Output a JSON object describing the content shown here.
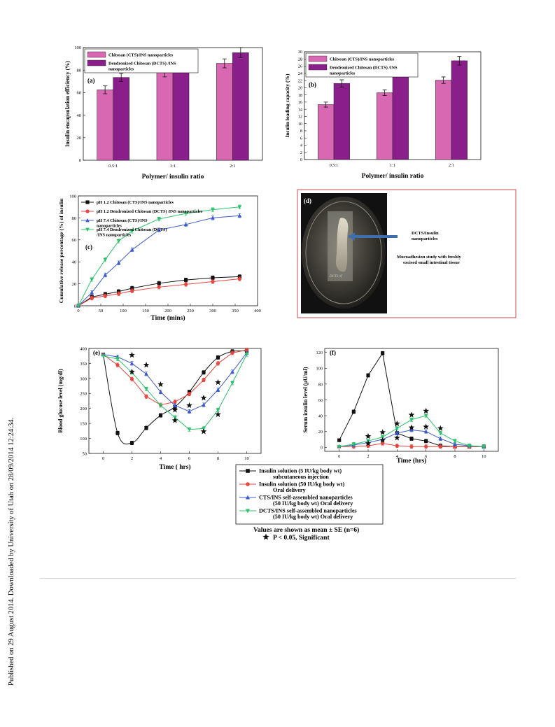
{
  "side_note": "Published on 29 August 2014. Downloaded by University of Utah on 28/09/2014 12:24:34.",
  "colors": {
    "pink": "#d968b3",
    "purple": "#8a1f8c",
    "black": "#111111",
    "red": "#e8453c",
    "blue": "#3d5ccc",
    "green": "#2bc46b",
    "frame": "#d36b6b"
  },
  "chart_data": [
    {
      "id": "a",
      "type": "bar",
      "panel_label": "(a)",
      "categories": [
        "0.5:1",
        "1:1",
        "2:1"
      ],
      "series": [
        {
          "name": "Chitosan (CTS)/INS nanoparticles",
          "values": [
            62.5,
            78,
            86
          ],
          "errors": [
            3.5,
            4,
            4
          ]
        },
        {
          "name": "Dendronized Chitosan (DCTS) /INS nanoparticles",
          "values": [
            73.5,
            89.5,
            95.5
          ],
          "errors": [
            3.5,
            5,
            4.5
          ]
        }
      ],
      "xlabel": "Polymer/ insulin ratio",
      "ylabel": "Insulin encapsulation efficiency (%)",
      "ylim": [
        0,
        100
      ],
      "yticks": [
        "0",
        "20",
        "40",
        "60",
        "80",
        "100"
      ],
      "legend": "top-left"
    },
    {
      "id": "b",
      "type": "bar",
      "panel_label": "(b)",
      "categories": [
        "0.5:1",
        "1:1",
        "2:1"
      ],
      "series": [
        {
          "name": "Chitosan (CTS)/INS nanoparticles",
          "values": [
            15.3,
            18.6,
            22.1
          ],
          "errors": [
            0.7,
            0.8,
            0.9
          ]
        },
        {
          "name": "Dendronized Chitosan (DCTS) /INS nanoparticles",
          "values": [
            21.2,
            25.4,
            27.5
          ],
          "errors": [
            1,
            1.2,
            1.2
          ]
        }
      ],
      "xlabel": "Polymer/ insulin ratio",
      "ylabel": "Insulin loading capacity (%)",
      "ylim": [
        0,
        30
      ],
      "yticks": [
        "0",
        "2",
        "4",
        "6",
        "8",
        "10",
        "12",
        "14",
        "16",
        "18",
        "20",
        "22",
        "24",
        "26",
        "28",
        "30"
      ],
      "legend": "top-left"
    },
    {
      "id": "c",
      "type": "line",
      "panel_label": "(c)",
      "series": [
        {
          "name": "pH 1.2 Chitosan (CTS)/INS nanoparticles",
          "marker": "square",
          "x": [
            0,
            30,
            60,
            90,
            120,
            180,
            240,
            300,
            360
          ],
          "y": [
            0,
            8,
            10.5,
            13,
            16,
            20.5,
            23.5,
            25.5,
            26.5
          ]
        },
        {
          "name": "pH 1.2 Dendronized Chitosan (DCTS) /INS nanoparticles",
          "marker": "circle",
          "x": [
            0,
            30,
            60,
            90,
            120,
            180,
            240,
            300,
            360
          ],
          "y": [
            0,
            7,
            9,
            11,
            13.5,
            17,
            19.5,
            22,
            24.5
          ]
        },
        {
          "name": "pH 7.4 Chitosan (CTS)/INS nanoparticles",
          "marker": "triangle-up",
          "x": [
            0,
            30,
            60,
            90,
            120,
            180,
            240,
            300,
            360
          ],
          "y": [
            0,
            12,
            28,
            39,
            51,
            69,
            74,
            80,
            82
          ]
        },
        {
          "name": "pH 7.4 Dendronized Chitosan (DCTS) /INS nanoparticles",
          "marker": "triangle-down",
          "x": [
            0,
            30,
            60,
            90,
            120,
            180,
            240,
            300,
            360
          ],
          "y": [
            0,
            24,
            42,
            59,
            68,
            79,
            84,
            87.5,
            90
          ]
        }
      ],
      "xlabel": "Time (mins)",
      "ylabel": "Cumulative release percentage (%) of insulin",
      "xlim": [
        0,
        400
      ],
      "ylim": [
        0,
        100
      ],
      "xticks": [
        "0",
        "50",
        "100",
        "150",
        "200",
        "250",
        "300",
        "350",
        "400"
      ],
      "yticks": [
        "0",
        "20",
        "40",
        "60",
        "80",
        "100"
      ],
      "legend": "top-left"
    },
    {
      "id": "e",
      "type": "line",
      "panel_label": "(e)",
      "series": [
        {
          "name": "Insulin solution (5 IU/kg body wt) subcutaneous injection",
          "marker": "square",
          "x": [
            0,
            1,
            2,
            3,
            4,
            5,
            6,
            7,
            8,
            9,
            10
          ],
          "y": [
            380,
            118,
            85,
            135,
            177,
            205,
            255,
            320,
            370,
            390,
            392
          ]
        },
        {
          "name": "Insulin solution (50 IU/kg body wt) Oral delivery",
          "marker": "circle",
          "x": [
            0,
            1,
            2,
            3,
            4,
            5,
            6,
            7,
            8,
            9,
            10
          ],
          "y": [
            380,
            345,
            298,
            240,
            212,
            222,
            248,
            295,
            350,
            385,
            395
          ]
        },
        {
          "name": "CTS/INS self-assembled nanoparticles (50 IU/kg body wt) Oral delivery",
          "marker": "triangle-up",
          "x": [
            0,
            1,
            2,
            3,
            4,
            5,
            6,
            7,
            8,
            9,
            10
          ],
          "y": [
            380,
            372,
            350,
            315,
            255,
            210,
            190,
            212,
            262,
            322,
            385
          ]
        },
        {
          "name": "DCTS/INS self-assembled nanoparticles (50 IU/kg body wt) Oral delivery",
          "marker": "triangle-down",
          "x": [
            0,
            1,
            2,
            3,
            4,
            5,
            6,
            7,
            8,
            9,
            10
          ],
          "y": [
            375,
            365,
            320,
            265,
            210,
            170,
            130,
            133,
            195,
            285,
            380
          ]
        }
      ],
      "significance_x": [
        2,
        2,
        3,
        4,
        5,
        5,
        6,
        7,
        7,
        8,
        8
      ],
      "significance_y": [
        378,
        322,
        345,
        280,
        195,
        160,
        210,
        235,
        123,
        287,
        180
      ],
      "xlabel": "Time ( hrs)",
      "ylabel": "Blood glucose level (mg/dl)",
      "xlim": [
        -1,
        11
      ],
      "ylim": [
        50,
        400
      ],
      "xticks": [
        "0",
        "2",
        "4",
        "6",
        "8",
        "10"
      ],
      "yticks": [
        "50",
        "100",
        "150",
        "200",
        "250",
        "300",
        "350",
        "400"
      ]
    },
    {
      "id": "f",
      "type": "line",
      "panel_label": "(f)",
      "series": [
        {
          "name": "Insulin solution (5 IU/kg body wt) subcutaneous injection",
          "marker": "square",
          "x": [
            0,
            1,
            2,
            3,
            4,
            5,
            6,
            7,
            8,
            9,
            10
          ],
          "y": [
            9,
            45,
            91,
            119,
            18,
            11,
            8,
            2,
            1,
            1,
            1
          ]
        },
        {
          "name": "Insulin solution (50 IU/kg body wt) Oral delivery",
          "marker": "circle",
          "x": [
            0,
            1,
            2,
            3,
            4,
            5,
            6,
            7,
            8,
            9,
            10
          ],
          "y": [
            1,
            1,
            2,
            5,
            2,
            1,
            1,
            1,
            1,
            1,
            1
          ]
        },
        {
          "name": "CTS/INS self-assembled nanoparticles (50 IU/kg body wt) Oral delivery",
          "marker": "triangle-up",
          "x": [
            0,
            1,
            2,
            3,
            4,
            5,
            6,
            7,
            8,
            9,
            10
          ],
          "y": [
            1,
            3,
            6,
            10,
            18,
            22,
            20,
            11,
            4,
            2,
            1
          ]
        },
        {
          "name": "DCTS/INS self-assembled nanoparticles (50 IU/kg body wt) Oral delivery",
          "marker": "triangle-down",
          "x": [
            0,
            1,
            2,
            3,
            4,
            5,
            6,
            7,
            8,
            9,
            10
          ],
          "y": [
            1,
            4,
            8,
            13,
            24,
            35,
            40,
            18,
            8,
            2,
            1
          ]
        }
      ],
      "significance_x": [
        2,
        2,
        3,
        3,
        4,
        4,
        5,
        5,
        6,
        6,
        7
      ],
      "significance_y": [
        14,
        5,
        19,
        9,
        30,
        12,
        41,
        25,
        46,
        26,
        24
      ],
      "xlabel": "Time (hrs)",
      "ylabel": "Serum insulin level (μU/ml)",
      "xlim": [
        -1,
        11
      ],
      "ylim": [
        -5,
        125
      ],
      "xticks": [
        "0",
        "2",
        "4",
        "6",
        "8",
        "10"
      ],
      "yticks": [
        "0",
        "20",
        "40",
        "60",
        "80",
        "100",
        "120"
      ]
    }
  ],
  "photo_panel": {
    "panel_label": "(d)",
    "arrow_label_1": "DCTS/Insulin",
    "arrow_label_2": "nanoparticles",
    "caption_1": "Mucoadhesion study with freshly",
    "caption_2": "excised small intestinal tissue"
  },
  "shared_legend": {
    "items": [
      {
        "line1": "Insulin solution (5 IU/kg body wt)",
        "line2": "subcutaneous injection",
        "marker": "square"
      },
      {
        "line1": "Insulin solution (50 IU/kg body wt)",
        "line2": "Oral delivery",
        "marker": "circle"
      },
      {
        "line1": "CTS/INS self-assembled nanoparticles",
        "line2": "(50 IU/kg body wt) Oral delivery",
        "marker": "triangle-up"
      },
      {
        "line1": "DCTS/INS self-assembled nanoparticles",
        "line2": "(50 IU/kg body wt) Oral delivery",
        "marker": "triangle-down"
      }
    ],
    "note_1": "Values are shown as mean ± SE (n=6)",
    "note_2": "P < 0.05, Significant"
  }
}
